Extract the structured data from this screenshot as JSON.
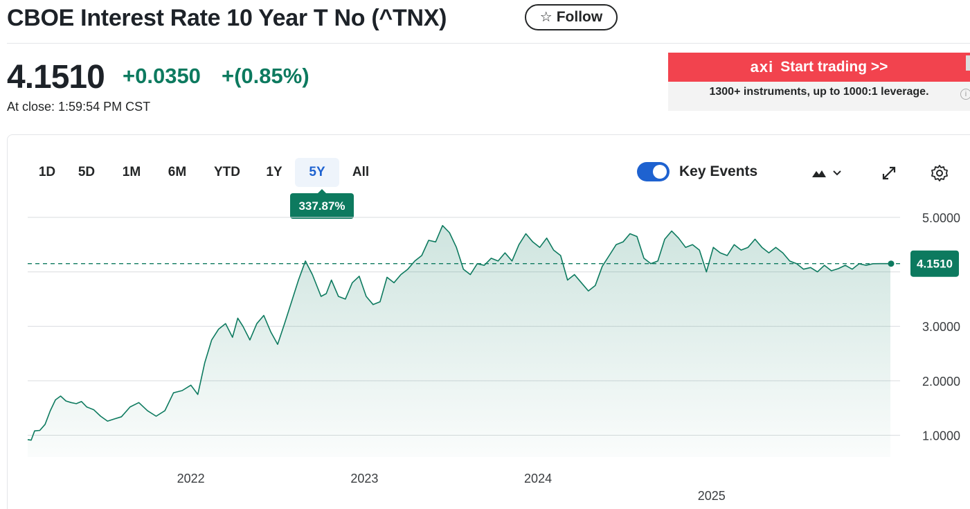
{
  "header": {
    "title": "CBOE Interest Rate 10 Year T No (^TNX)",
    "follow_label": "Follow"
  },
  "quote": {
    "price": "4.1510",
    "change": "+0.0350",
    "change_percent": "+(0.85%)",
    "close_info": "At close: 1:59:54 PM CST",
    "positive_color": "#0d7a5f"
  },
  "ad": {
    "logo": "axi",
    "cta": "Start trading >>",
    "subtitle": "1300+ instruments, up to 1000:1 leverage.",
    "banner_color": "#f2434e"
  },
  "toolbar": {
    "range_tabs": [
      "1D",
      "5D",
      "1M",
      "6M",
      "YTD",
      "1Y",
      "5Y",
      "All"
    ],
    "active_tab": "5Y",
    "performance_badge": "337.87%",
    "key_events_label": "Key Events",
    "key_events_enabled": true,
    "icons": [
      "mountain-chart-icon",
      "chevron-down-icon",
      "expand-icon",
      "gear-icon"
    ],
    "accent_color": "#1e62d0"
  },
  "chart_data": {
    "type": "area",
    "title": "",
    "xlabel": "",
    "ylabel": "",
    "x_ticks": [
      "2022",
      "2023",
      "2024",
      "2025"
    ],
    "x_range": [
      2021.06,
      2026.03
    ],
    "y_ticks": [
      "1.0000",
      "2.0000",
      "3.0000",
      "5.0000"
    ],
    "ylim": [
      0.6,
      5.05
    ],
    "grid": true,
    "reference_line": 4.151,
    "last_price_label": "4.1510",
    "line_color": "#0d7a5f",
    "series": [
      {
        "x": [
          2021.06,
          2021.08,
          2021.1,
          2021.13,
          2021.16,
          2021.19,
          2021.22,
          2021.25,
          2021.28,
          2021.31,
          2021.34,
          2021.37,
          2021.4,
          2021.44,
          2021.48,
          2021.52,
          2021.56,
          2021.6,
          2021.65,
          2021.7,
          2021.75,
          2021.8,
          2021.85,
          2021.9,
          2021.95,
          2022.0,
          2022.04,
          2022.08,
          2022.12,
          2022.16,
          2022.2,
          2022.24,
          2022.27,
          2022.3,
          2022.34,
          2022.38,
          2022.42,
          2022.46,
          2022.5,
          2022.54,
          2022.58,
          2022.62,
          2022.66,
          2022.7,
          2022.75,
          2022.78,
          2022.81,
          2022.85,
          2022.89,
          2022.93,
          2022.97,
          2023.01,
          2023.05,
          2023.09,
          2023.13,
          2023.17,
          2023.21,
          2023.25,
          2023.29,
          2023.33,
          2023.37,
          2023.41,
          2023.45,
          2023.49,
          2023.53,
          2023.57,
          2023.61,
          2023.65,
          2023.69,
          2023.73,
          2023.77,
          2023.81,
          2023.85,
          2023.89,
          2023.93,
          2023.97,
          2024.01,
          2024.05,
          2024.09,
          2024.13,
          2024.17,
          2024.21,
          2024.25,
          2024.29,
          2024.33,
          2024.37,
          2024.41,
          2024.45,
          2024.49,
          2024.53,
          2024.57,
          2024.61,
          2024.65,
          2024.69,
          2024.73,
          2024.77,
          2024.81,
          2024.85,
          2024.89,
          2024.93,
          2024.97,
          2025.01,
          2025.05,
          2025.09,
          2025.13,
          2025.17,
          2025.21,
          2025.25,
          2025.29,
          2025.33,
          2025.37,
          2025.41,
          2025.45,
          2025.49,
          2025.53,
          2025.57,
          2025.61,
          2025.65,
          2025.69,
          2025.73,
          2025.77,
          2025.81,
          2025.85,
          2025.89,
          2025.93,
          2025.97,
          2026.01,
          2026.03
        ],
        "values": [
          0.92,
          0.91,
          1.08,
          1.09,
          1.2,
          1.45,
          1.65,
          1.72,
          1.63,
          1.6,
          1.58,
          1.62,
          1.52,
          1.47,
          1.35,
          1.26,
          1.3,
          1.34,
          1.52,
          1.6,
          1.45,
          1.35,
          1.45,
          1.78,
          1.82,
          1.92,
          1.75,
          2.33,
          2.75,
          2.95,
          3.05,
          2.8,
          3.15,
          3.0,
          2.75,
          3.05,
          3.2,
          2.9,
          2.67,
          3.05,
          3.45,
          3.85,
          4.2,
          3.95,
          3.55,
          3.6,
          3.85,
          3.55,
          3.5,
          3.8,
          3.92,
          3.55,
          3.4,
          3.45,
          3.9,
          3.8,
          3.95,
          4.05,
          4.2,
          4.3,
          4.58,
          4.55,
          4.85,
          4.72,
          4.45,
          4.05,
          3.95,
          4.15,
          4.12,
          4.25,
          4.2,
          4.35,
          4.2,
          4.5,
          4.7,
          4.55,
          4.45,
          4.62,
          4.4,
          4.3,
          3.85,
          3.95,
          3.8,
          3.65,
          3.75,
          4.1,
          4.3,
          4.5,
          4.55,
          4.7,
          4.65,
          4.25,
          4.15,
          4.2,
          4.6,
          4.75,
          4.62,
          4.45,
          4.5,
          4.4,
          4.0,
          4.45,
          4.35,
          4.3,
          4.5,
          4.4,
          4.45,
          4.6,
          4.45,
          4.35,
          4.45,
          4.35,
          4.2,
          4.15,
          4.05,
          4.08,
          4.0,
          4.12,
          4.02,
          4.06,
          4.12,
          4.05,
          4.15,
          4.12,
          4.15,
          4.151,
          4.151,
          4.151
        ]
      }
    ]
  }
}
